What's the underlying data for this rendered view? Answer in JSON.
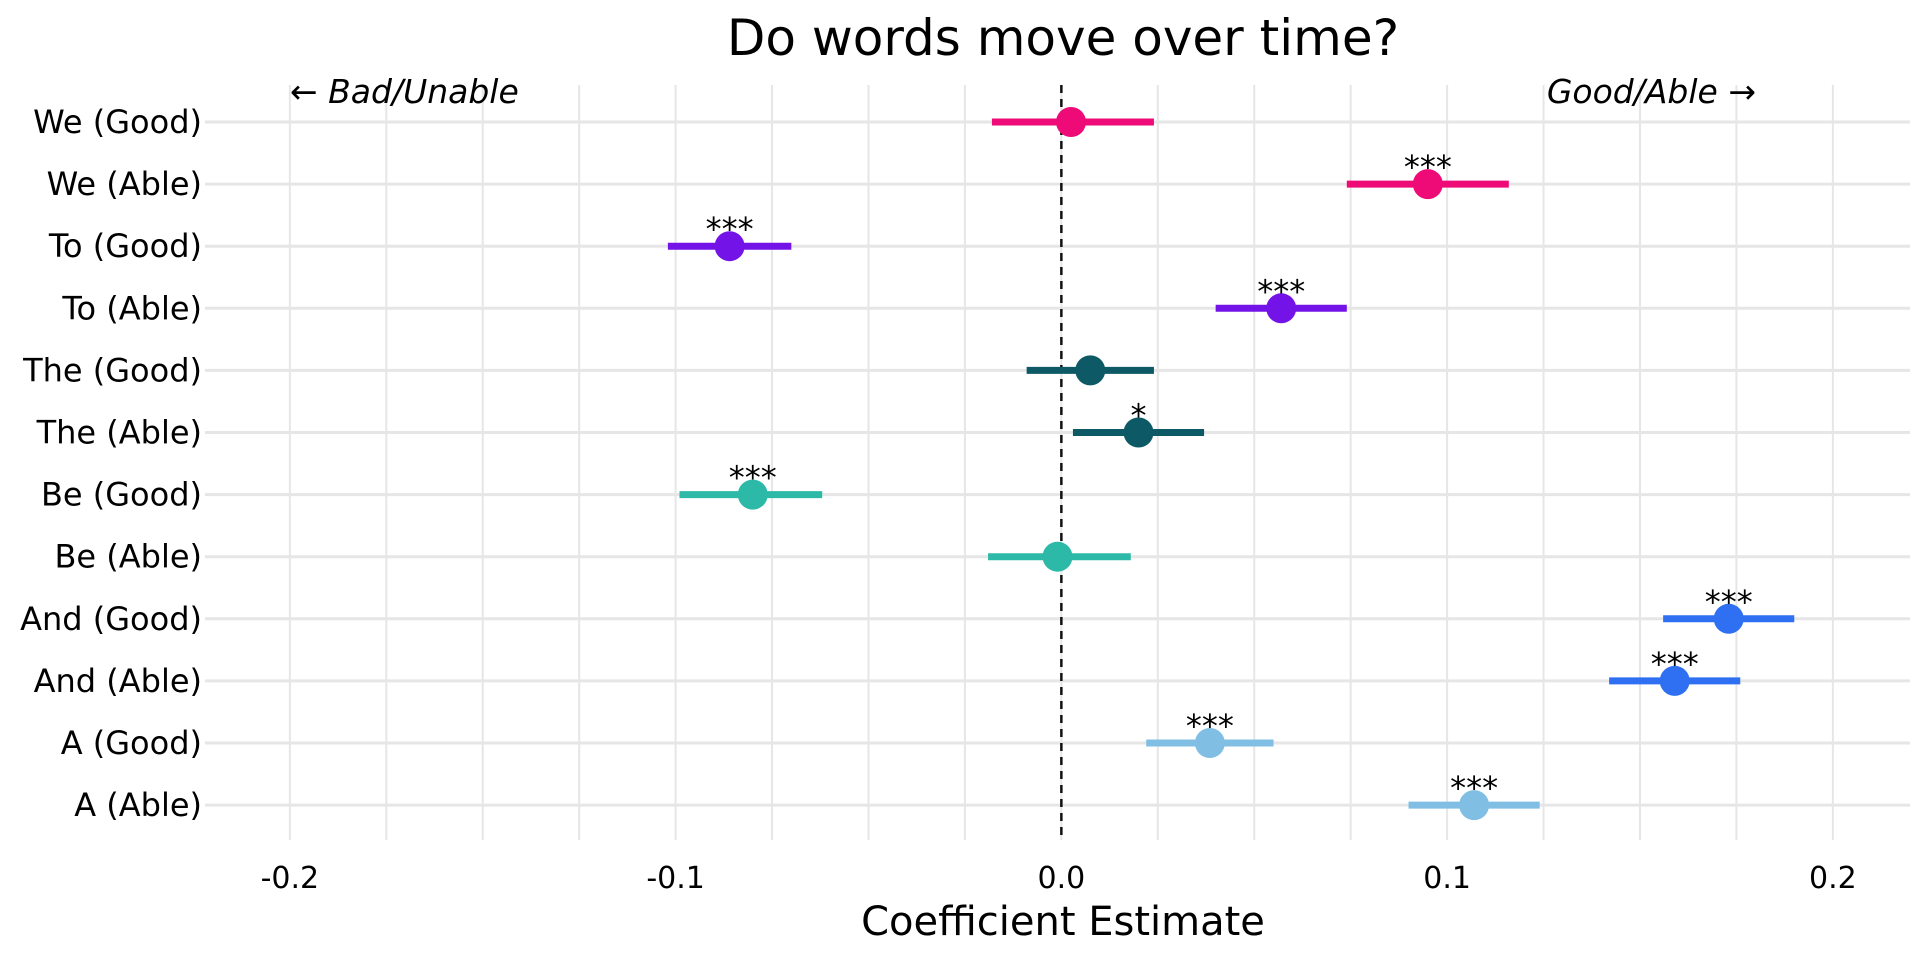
{
  "chart_data": {
    "type": "scatter",
    "title": "Do words move over time?",
    "xlabel": "Coefficient Estimate",
    "ylabel": "",
    "xlim": [
      -0.222,
      0.22
    ],
    "x_ticks": [
      -0.2,
      -0.1,
      0.0,
      0.1,
      0.2
    ],
    "x_tick_labels": [
      "-0.2",
      "-0.1",
      "0.0",
      "0.1",
      "0.2"
    ],
    "grid": true,
    "reference_line": {
      "x": 0,
      "style": "dashed"
    },
    "annotations": {
      "left": "← Bad/Unable",
      "right": "Good/Able →"
    },
    "categories": [
      "We (Good)",
      "We (Able)",
      "To (Good)",
      "To (Able)",
      "The (Good)",
      "The (Able)",
      "Be (Good)",
      "Be (Able)",
      "And (Good)",
      "And (Able)",
      "A (Good)",
      "A (Able)"
    ],
    "estimates": [
      0.0025,
      0.095,
      -0.086,
      0.057,
      0.0075,
      0.02,
      -0.08,
      -0.001,
      0.173,
      0.159,
      0.0385,
      0.107
    ],
    "ci_low": [
      -0.018,
      0.074,
      -0.102,
      0.04,
      -0.009,
      0.003,
      -0.099,
      -0.019,
      0.156,
      0.142,
      0.022,
      0.09
    ],
    "ci_high": [
      0.024,
      0.116,
      -0.07,
      0.074,
      0.024,
      0.037,
      -0.062,
      0.018,
      0.19,
      0.176,
      0.055,
      0.124
    ],
    "significance": [
      "",
      "***",
      "***",
      "***",
      "",
      "*",
      "***",
      "",
      "***",
      "***",
      "***",
      "***"
    ],
    "colors": [
      "#ee0a77",
      "#ee0a77",
      "#7413e8",
      "#7413e8",
      "#0d5a66",
      "#0d5a66",
      "#2cb9a8",
      "#2cb9a8",
      "#2f6ff2",
      "#2f6ff2",
      "#80bfe3",
      "#80bfe3"
    ]
  }
}
